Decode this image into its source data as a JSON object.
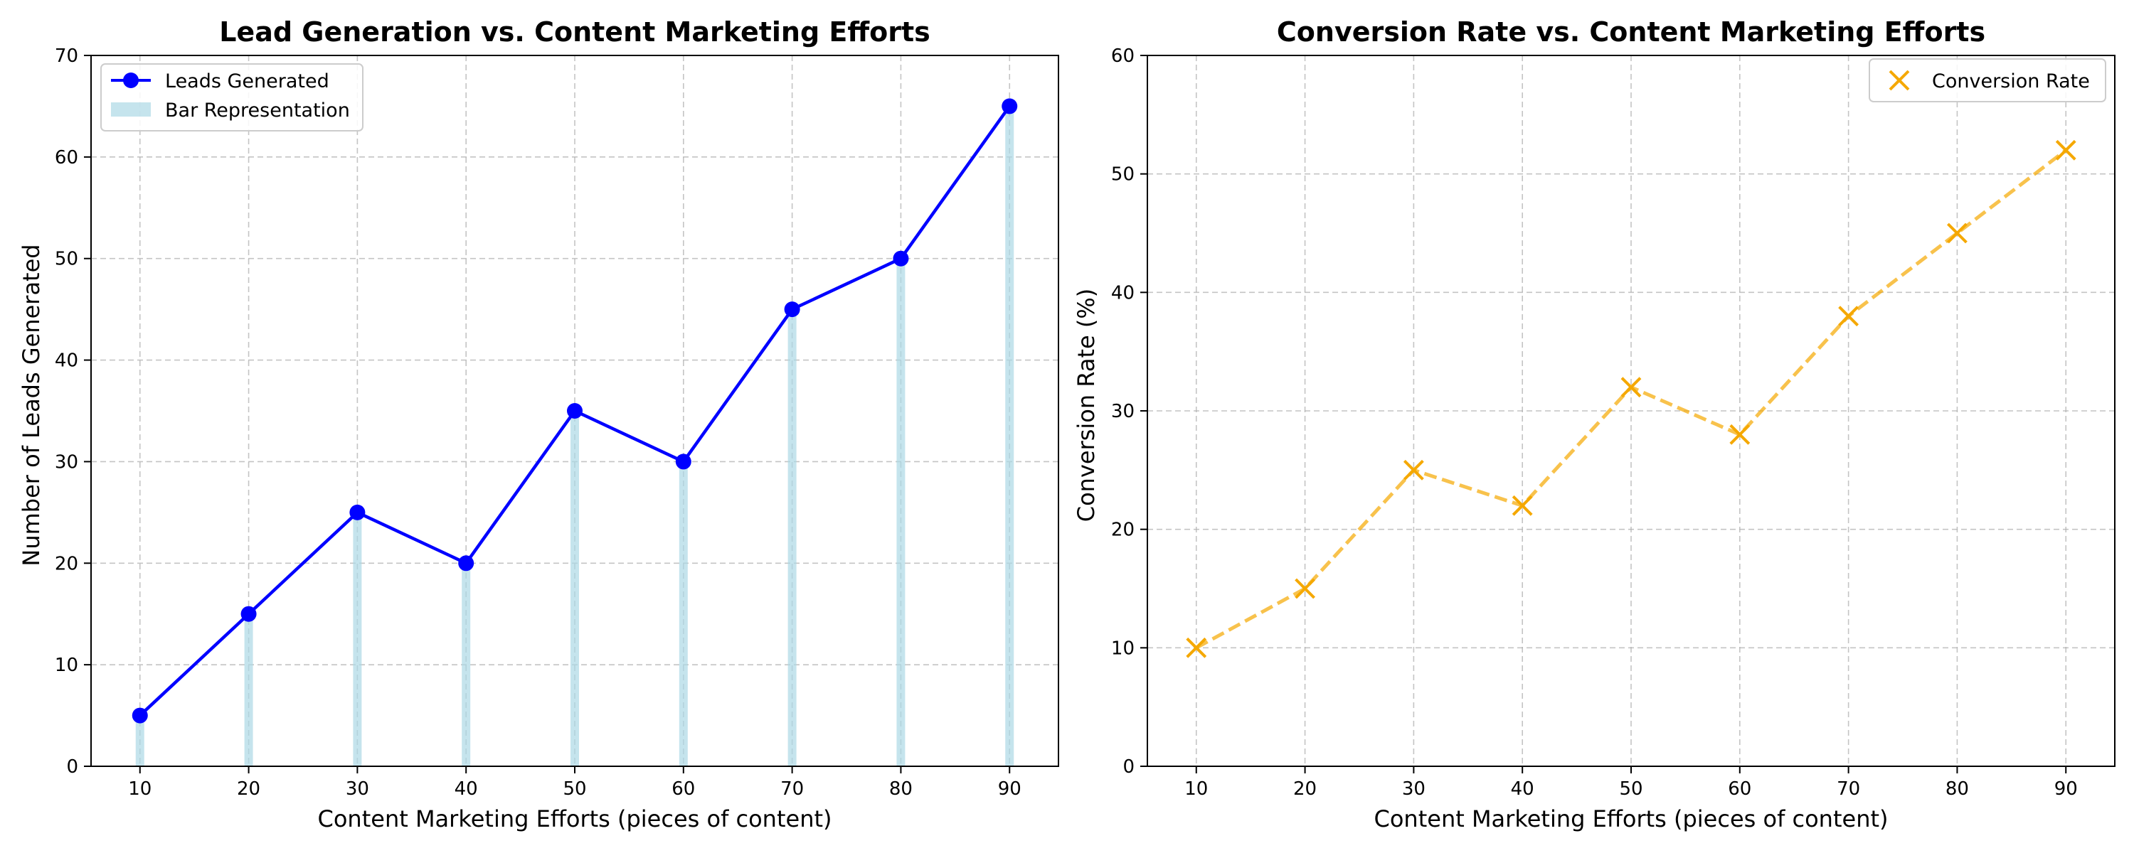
{
  "colors": {
    "leads_line": "#0000ff",
    "bars": "#add8e6",
    "conversion": "#f5a800",
    "grid": "#b0b0b0"
  },
  "chart_data": [
    {
      "type": "line",
      "title": "Lead Generation vs. Content Marketing Efforts",
      "xlabel": "Content Marketing Efforts (pieces of content)",
      "ylabel": "Number of Leads Generated",
      "x": [
        10,
        20,
        30,
        40,
        50,
        60,
        70,
        80,
        90
      ],
      "xticks": [
        10,
        20,
        30,
        40,
        50,
        60,
        70,
        80,
        90
      ],
      "xlim": [
        5.5,
        94.5
      ],
      "ylim": [
        0,
        70
      ],
      "yticks": [
        0,
        10,
        20,
        30,
        40,
        50,
        60,
        70
      ],
      "grid": true,
      "legend_position": "top-left",
      "series": [
        {
          "name": "Leads Generated",
          "kind": "line-marker",
          "values": [
            5,
            15,
            25,
            20,
            35,
            30,
            45,
            50,
            65
          ]
        },
        {
          "name": "Bar Representation",
          "kind": "bar",
          "values": [
            5,
            15,
            25,
            20,
            35,
            30,
            45,
            50,
            65
          ]
        }
      ]
    },
    {
      "type": "line",
      "title": "Conversion Rate vs. Content Marketing Efforts",
      "xlabel": "Content Marketing Efforts (pieces of content)",
      "ylabel": "Conversion Rate (%)",
      "x": [
        10,
        20,
        30,
        40,
        50,
        60,
        70,
        80,
        90
      ],
      "xticks": [
        10,
        20,
        30,
        40,
        50,
        60,
        70,
        80,
        90
      ],
      "xlim": [
        5.5,
        94.5
      ],
      "ylim": [
        0,
        60
      ],
      "yticks": [
        0,
        10,
        20,
        30,
        40,
        50,
        60
      ],
      "grid": true,
      "legend_position": "top-right",
      "series": [
        {
          "name": "Conversion Rate",
          "kind": "dashed-x-marker",
          "values": [
            10,
            15,
            25,
            22,
            32,
            28,
            38,
            45,
            52
          ]
        }
      ]
    }
  ]
}
